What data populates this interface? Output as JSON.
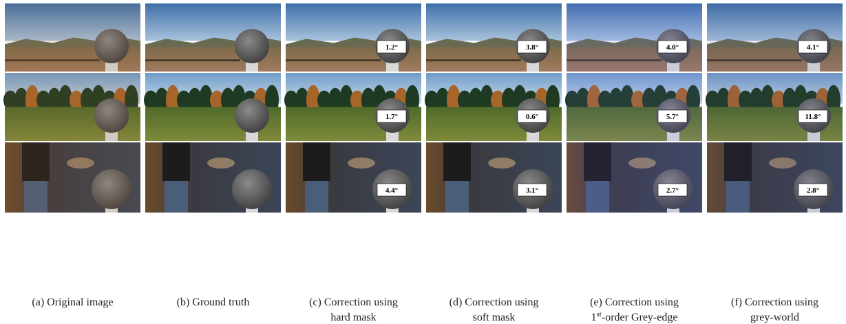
{
  "figure": {
    "columns": [
      {
        "caption": [
          "(a) Original image"
        ]
      },
      {
        "caption": [
          "(b) Ground truth"
        ]
      },
      {
        "caption": [
          "(c) Correction using",
          "hard mask"
        ],
        "errors": [
          "1.2°",
          "1.7°",
          "4.4°"
        ]
      },
      {
        "caption": [
          "(d) Correction using",
          "soft mask"
        ],
        "errors": [
          "3.8°",
          "0.6°",
          "3.1°"
        ]
      },
      {
        "caption": [
          "(e) Correction using",
          {
            "number": "1",
            "sup": "st",
            "text": "-order Grey-edge"
          }
        ],
        "errors": [
          "4.0°",
          "5.7°",
          "2.7°"
        ]
      },
      {
        "caption": [
          "(f) Correction using",
          "grey-world"
        ],
        "errors": [
          "4.1°",
          "11.8°",
          "2.8°"
        ]
      }
    ]
  }
}
